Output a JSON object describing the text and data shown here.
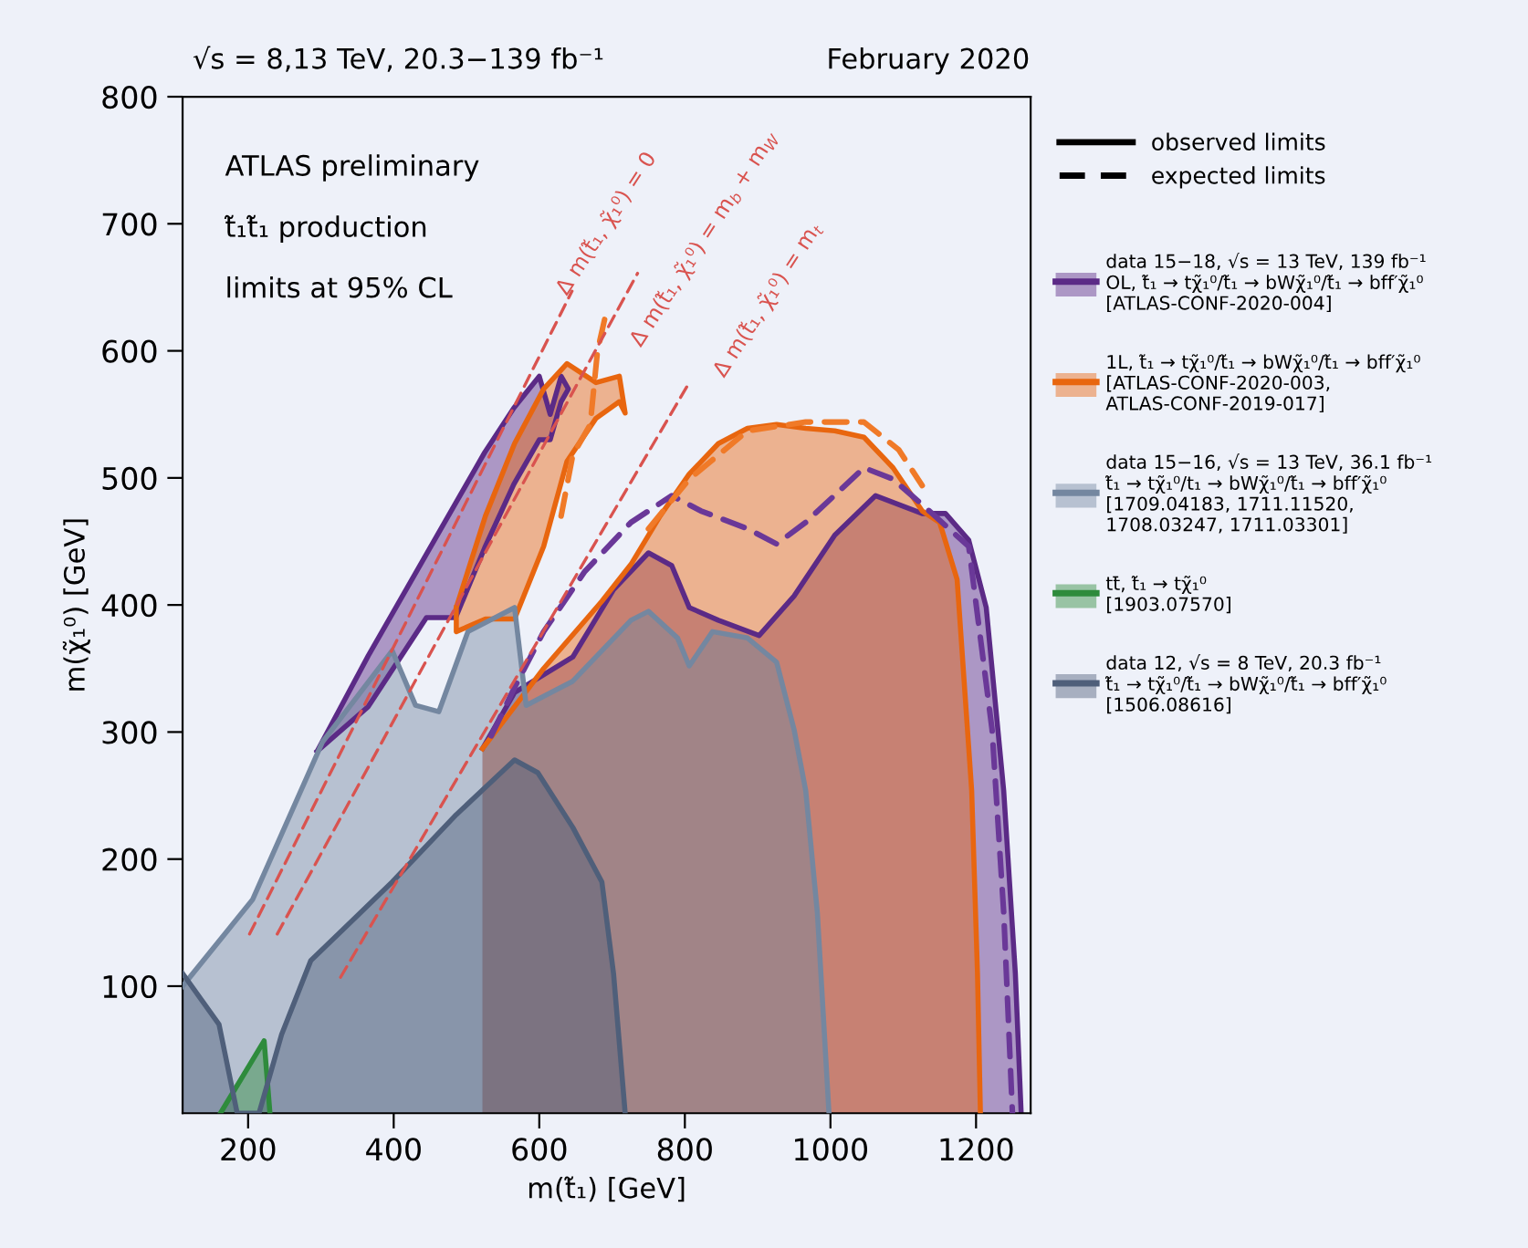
{
  "chart_data": {
    "type": "area",
    "title": "√s = 8,13 TeV, 20.3−139 fb⁻¹",
    "xlabel": "m(t̃₁) [GeV]",
    "ylabel": "m(χ̃₁⁰) [GeV]",
    "xlim": [
      110,
      1275
    ],
    "ylim": [
      0,
      800
    ],
    "xticks": [
      200,
      400,
      600,
      800,
      1000,
      1200
    ],
    "yticks": [
      100,
      200,
      300,
      400,
      500,
      600,
      700,
      800
    ],
    "grid": false,
    "legend": "right",
    "annotations": [
      "February 2020",
      "ATLAS preliminary",
      "t̃₁t̃₁ production",
      "limits at 95% CL",
      "observed limits",
      "expected limits",
      "Δ m(t̃₁, χ̃₁⁰) = 0",
      "Δ m(t̃₁, χ̃₁⁰) = m$_{b}$ + m$_{W}$",
      "Δ m(t̃₁, χ̃₁⁰) = m$_{t}$"
    ],
    "series": [
      {
        "name": "data 15−18, √s = 13 TeV, 139 fb⁻¹\nOL, t̃₁ → tχ̃₁⁰/t̃₁ → bWχ̃₁⁰/t̃₁ → bff′χ̃₁⁰\n[ATLAS-CONF-2020-004]",
        "color": "#5b2a86",
        "x": [
          522,
          566,
          646,
          702,
          750,
          782,
          806,
          846,
          902,
          950,
          1006,
          1062,
          1126,
          1158,
          1190,
          1214,
          1238,
          1254,
          1262
        ],
        "values": [
          287,
          331,
          359,
          412,
          441,
          431,
          398,
          388,
          376,
          407,
          455,
          486,
          472,
          472,
          451,
          398,
          254,
          110,
          0
        ]
      },
      {
        "color": "#5b2a86",
        "x": [
          295,
          365,
          445,
          485,
          525,
          565,
          600,
          615,
          630,
          640,
          630,
          615,
          600,
          565,
          525,
          485,
          445,
          365,
          295
        ],
        "values": [
          285,
          360,
          440,
          480,
          520,
          555,
          580,
          550,
          580,
          570,
          560,
          530,
          530,
          495,
          445,
          390,
          390,
          320,
          285
        ]
      },
      {
        "type": "line",
        "color": "#6a3898",
        "line_style": "dashed",
        "x": [
          534,
          566,
          606,
          662,
          726,
          782,
          822,
          886,
          926,
          966,
          1046,
          1086,
          1126,
          1190,
          1222,
          1238,
          1250
        ],
        "values": [
          297,
          335,
          379,
          426,
          465,
          486,
          474,
          460,
          448,
          465,
          508,
          499,
          479,
          446,
          302,
          158,
          0
        ]
      },
      {
        "name": "1L, t̃₁ → tχ̃₁⁰/t̃₁ → bWχ̃₁⁰/t̃₁ → bff′χ̃₁⁰\n[ATLAS-CONF-2020-003,\nATLAS-CONF-2019-017]",
        "color": "#e8660f",
        "x": [
          522,
          606,
          686,
          726,
          766,
          806,
          846,
          886,
          926,
          966,
          1006,
          1046,
          1086,
          1126,
          1150,
          1174,
          1194,
          1202,
          1206
        ],
        "values": [
          287,
          350,
          403,
          432,
          470,
          503,
          527,
          539,
          542,
          539,
          537,
          532,
          508,
          474,
          465,
          420,
          254,
          110,
          0
        ]
      },
      {
        "color": "#e8660f",
        "x": [
          486,
          526,
          566,
          606,
          638,
          678,
          710,
          718,
          710,
          678,
          638,
          606,
          566,
          526,
          486,
          486
        ],
        "values": [
          398,
          470,
          527,
          570,
          590,
          575,
          580,
          551,
          560,
          547,
          513,
          446,
          389,
          389,
          379,
          398
        ]
      },
      {
        "type": "line",
        "color": "#f07a28",
        "line_style": "dashed",
        "x": [
          630,
          646,
          670,
          680,
          693
        ],
        "values": [
          470,
          518,
          542,
          600,
          633
        ]
      },
      {
        "type": "line",
        "color": "#f07a28",
        "line_style": "dashed",
        "x": [
          750,
          806,
          886,
          966,
          1046,
          1094,
          1126
        ],
        "values": [
          460,
          499,
          537,
          544,
          544,
          522,
          494
        ]
      },
      {
        "name": "data 15−16, √s = 13 TeV, 36.1 fb⁻¹\nt̃₁ → tχ̃₁⁰/t₁ → bWχ̃₁⁰/t̃₁ → bff′χ̃₁⁰\n[1709.04183, 1711.11520,\n1708.03247, 1711.03301]",
        "color": "#7487a0",
        "x": [
          110,
          206,
          302,
          398,
          430,
          462,
          502,
          566,
          582,
          646,
          726,
          750,
          790,
          806,
          838,
          886,
          926,
          950,
          966,
          982,
          998
        ],
        "values": [
          100,
          168,
          292,
          364,
          321,
          316,
          379,
          398,
          321,
          340,
          388,
          395,
          374,
          352,
          379,
          374,
          355,
          302,
          254,
          158,
          0
        ]
      },
      {
        "name": "tt̄, t̃₁ → tχ̃₁⁰\n[1903.07570]",
        "color": "#2e8b3c",
        "x": [
          162,
          222,
          230
        ],
        "values": [
          0,
          57,
          0
        ]
      },
      {
        "name": "data 12, √s = 8 TeV, 20.3 fb⁻¹\nt̃₁ → tχ̃₁⁰/t̃₁ → bWχ̃₁⁰/t̃₁ → bff′χ̃₁⁰\n[1506.08616]",
        "color": "#4f5f7a",
        "x": [
          110,
          160,
          185,
          215,
          246,
          286,
          398,
          486,
          566,
          598,
          646,
          686,
          702,
          718
        ],
        "values": [
          110,
          70,
          0,
          0,
          62,
          120,
          182,
          235,
          278,
          268,
          225,
          182,
          110,
          0
        ]
      },
      {
        "type": "line",
        "color": "#d9534f",
        "line_style": "dashed",
        "x": [
          202,
          645
        ],
        "values": [
          141,
          647
        ]
      },
      {
        "type": "line",
        "color": "#d9534f",
        "line_style": "dashed",
        "x": [
          240,
          735
        ],
        "values": [
          141,
          661
        ]
      },
      {
        "type": "line",
        "color": "#d9534f",
        "line_style": "dashed",
        "x": [
          327,
          806
        ],
        "values": [
          107,
          575
        ]
      }
    ]
  }
}
